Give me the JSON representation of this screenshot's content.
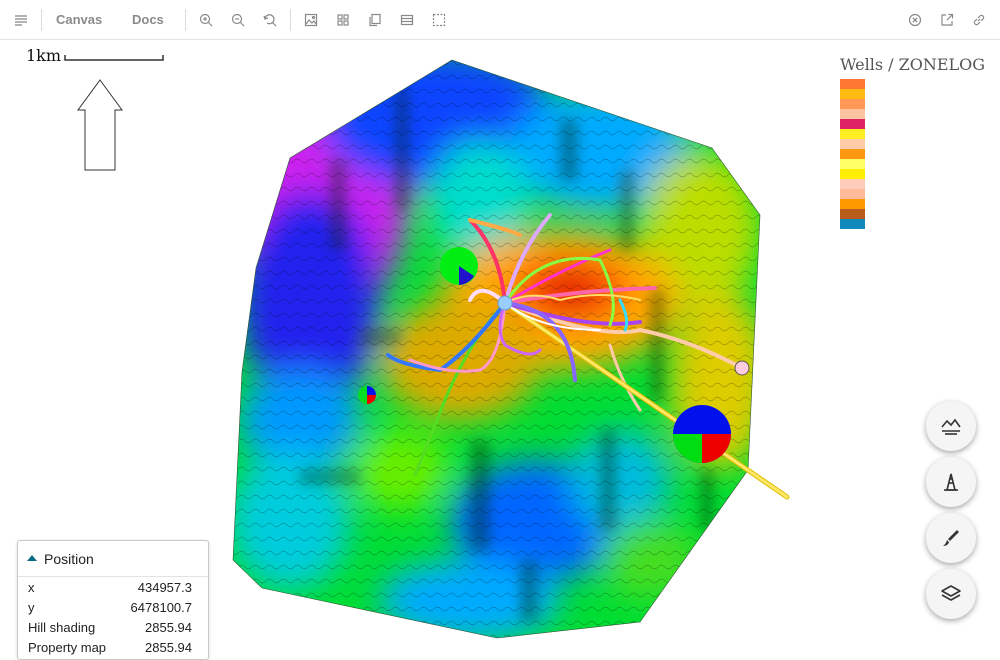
{
  "toolbar": {
    "nav_canvas": "Canvas",
    "nav_docs": "Docs",
    "icons": [
      "menu-icon",
      "zoom-in-icon",
      "zoom-out-icon",
      "reset-zoom-icon",
      "image-icon",
      "grid-icon",
      "copy-icon",
      "frame-icon",
      "fullscreen-icon",
      "close-circle-icon",
      "external-link-icon",
      "link-icon"
    ]
  },
  "map": {
    "scalebar_label": "1km",
    "legend": {
      "title": "Wells / ZONELOG",
      "colors": [
        "#ff7733",
        "#ffbb11",
        "#ff9955",
        "#ffc4a0",
        "#dd2266",
        "#ffee22",
        "#ffccaa",
        "#ff9911",
        "#ffff66",
        "#ffee00",
        "#ffccbb",
        "#ffbb99",
        "#ff9900",
        "#b85c1a",
        "#1188bb"
      ]
    },
    "surface_colors": [
      "#0000cc",
      "#0099ff",
      "#00ccdd",
      "#00dd44",
      "#99ee00",
      "#dddd00",
      "#ff8800",
      "#dd1100"
    ]
  },
  "fabs": [
    "hill-shading-icon",
    "wells-icon",
    "draw-icon",
    "layers-icon"
  ],
  "position_panel": {
    "title": "Position",
    "rows": [
      {
        "key": "x",
        "value": "434957.3"
      },
      {
        "key": "y",
        "value": "6478100.7"
      },
      {
        "key": "Hill shading",
        "value": "2855.94"
      },
      {
        "key": "Property map",
        "value": "2855.94"
      }
    ]
  }
}
